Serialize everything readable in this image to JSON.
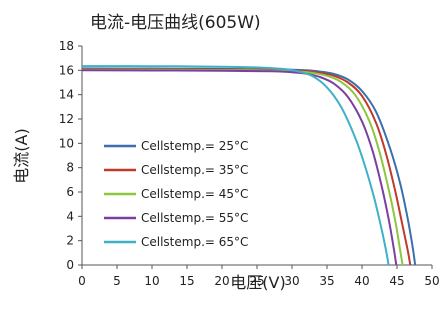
{
  "chart_data": {
    "type": "line",
    "title": "电流-电压曲线(605W)",
    "xlabel": "电压(V)",
    "ylabel": "电流(A)",
    "xlim": [
      0,
      50
    ],
    "ylim": [
      0,
      18
    ],
    "xticks": [
      0,
      5,
      10,
      15,
      20,
      25,
      30,
      35,
      40,
      45,
      50
    ],
    "yticks": [
      0,
      2,
      4,
      6,
      8,
      10,
      12,
      14,
      16,
      18
    ],
    "grid": false,
    "legend_position": "lower-left",
    "series": [
      {
        "name": "Cellstemp.= 25°C",
        "color": "#3a6fb0",
        "x": [
          0,
          10,
          20,
          28,
          32,
          34,
          36,
          38,
          40,
          42,
          44,
          45.5,
          46.5,
          47.2,
          47.6
        ],
        "y": [
          16.15,
          16.14,
          16.12,
          16.08,
          16.0,
          15.9,
          15.7,
          15.25,
          14.3,
          12.6,
          9.6,
          6.6,
          3.9,
          1.6,
          0
        ]
      },
      {
        "name": "Cellstemp.= 35°C",
        "color": "#c0392b",
        "x": [
          0,
          10,
          20,
          28,
          32,
          34,
          36,
          38,
          40,
          42,
          43.5,
          44.7,
          45.7,
          46.5,
          46.9
        ],
        "y": [
          16.1,
          16.09,
          16.07,
          16.03,
          15.93,
          15.8,
          15.55,
          15.0,
          13.9,
          11.7,
          9.0,
          6.2,
          3.5,
          1.3,
          0
        ]
      },
      {
        "name": "Cellstemp.= 45°C",
        "color": "#8dc63f",
        "x": [
          0,
          10,
          20,
          28,
          31,
          33,
          35,
          37,
          39,
          41,
          42.5,
          43.7,
          44.7,
          45.4,
          45.8
        ],
        "y": [
          16.05,
          16.04,
          16.02,
          15.97,
          15.9,
          15.78,
          15.55,
          15.05,
          14.0,
          11.9,
          9.3,
          6.5,
          3.8,
          1.4,
          0
        ]
      },
      {
        "name": "Cellstemp.= 55°C",
        "color": "#7b3fa0",
        "x": [
          0,
          10,
          20,
          27,
          30,
          32,
          34,
          36,
          38,
          40,
          41.5,
          42.8,
          43.8,
          44.5,
          44.9
        ],
        "y": [
          16.0,
          15.99,
          15.97,
          15.92,
          15.85,
          15.72,
          15.45,
          14.9,
          13.8,
          11.8,
          9.4,
          6.5,
          3.8,
          1.5,
          0
        ]
      },
      {
        "name": "Cellstemp.= 65°C",
        "color": "#3fb0c8",
        "x": [
          0,
          10,
          20,
          26,
          29,
          31,
          33,
          35,
          37,
          39,
          40.5,
          41.7,
          42.7,
          43.4,
          43.8
        ],
        "y": [
          16.35,
          16.34,
          16.3,
          16.22,
          16.1,
          15.9,
          15.5,
          14.6,
          13.0,
          10.5,
          8.0,
          5.6,
          3.2,
          1.3,
          0
        ]
      }
    ]
  }
}
